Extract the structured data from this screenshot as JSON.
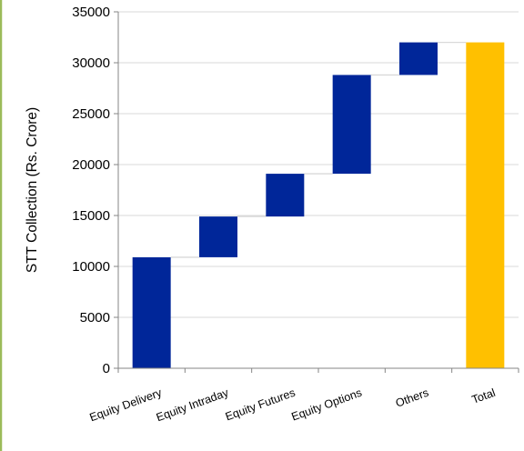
{
  "chart_data": {
    "type": "bar",
    "variant": "waterfall",
    "title": "",
    "xlabel": "",
    "ylabel": "STT Collection (Rs. Crore)",
    "ylim": [
      0,
      35000
    ],
    "yticks": [
      0,
      5000,
      10000,
      15000,
      20000,
      25000,
      30000,
      35000
    ],
    "grid": true,
    "categories": [
      "Equity Delivery",
      "Equity Intraday",
      "Equity Futures",
      "Equity Options",
      "Others",
      "Total"
    ],
    "bars": [
      {
        "category": "Equity Delivery",
        "start": 0,
        "end": 10900,
        "kind": "increment"
      },
      {
        "category": "Equity Intraday",
        "start": 10900,
        "end": 14900,
        "kind": "increment"
      },
      {
        "category": "Equity Futures",
        "start": 14900,
        "end": 19100,
        "kind": "increment"
      },
      {
        "category": "Equity Options",
        "start": 19100,
        "end": 28800,
        "kind": "increment"
      },
      {
        "category": "Others",
        "start": 28800,
        "end": 32000,
        "kind": "increment"
      },
      {
        "category": "Total",
        "start": 0,
        "end": 32000,
        "kind": "total"
      }
    ],
    "colors": {
      "increment": "#002699",
      "total": "#FFC000",
      "grid": "#D9D9D9",
      "axis": "#868686",
      "frame": "#9BBB59"
    }
  }
}
